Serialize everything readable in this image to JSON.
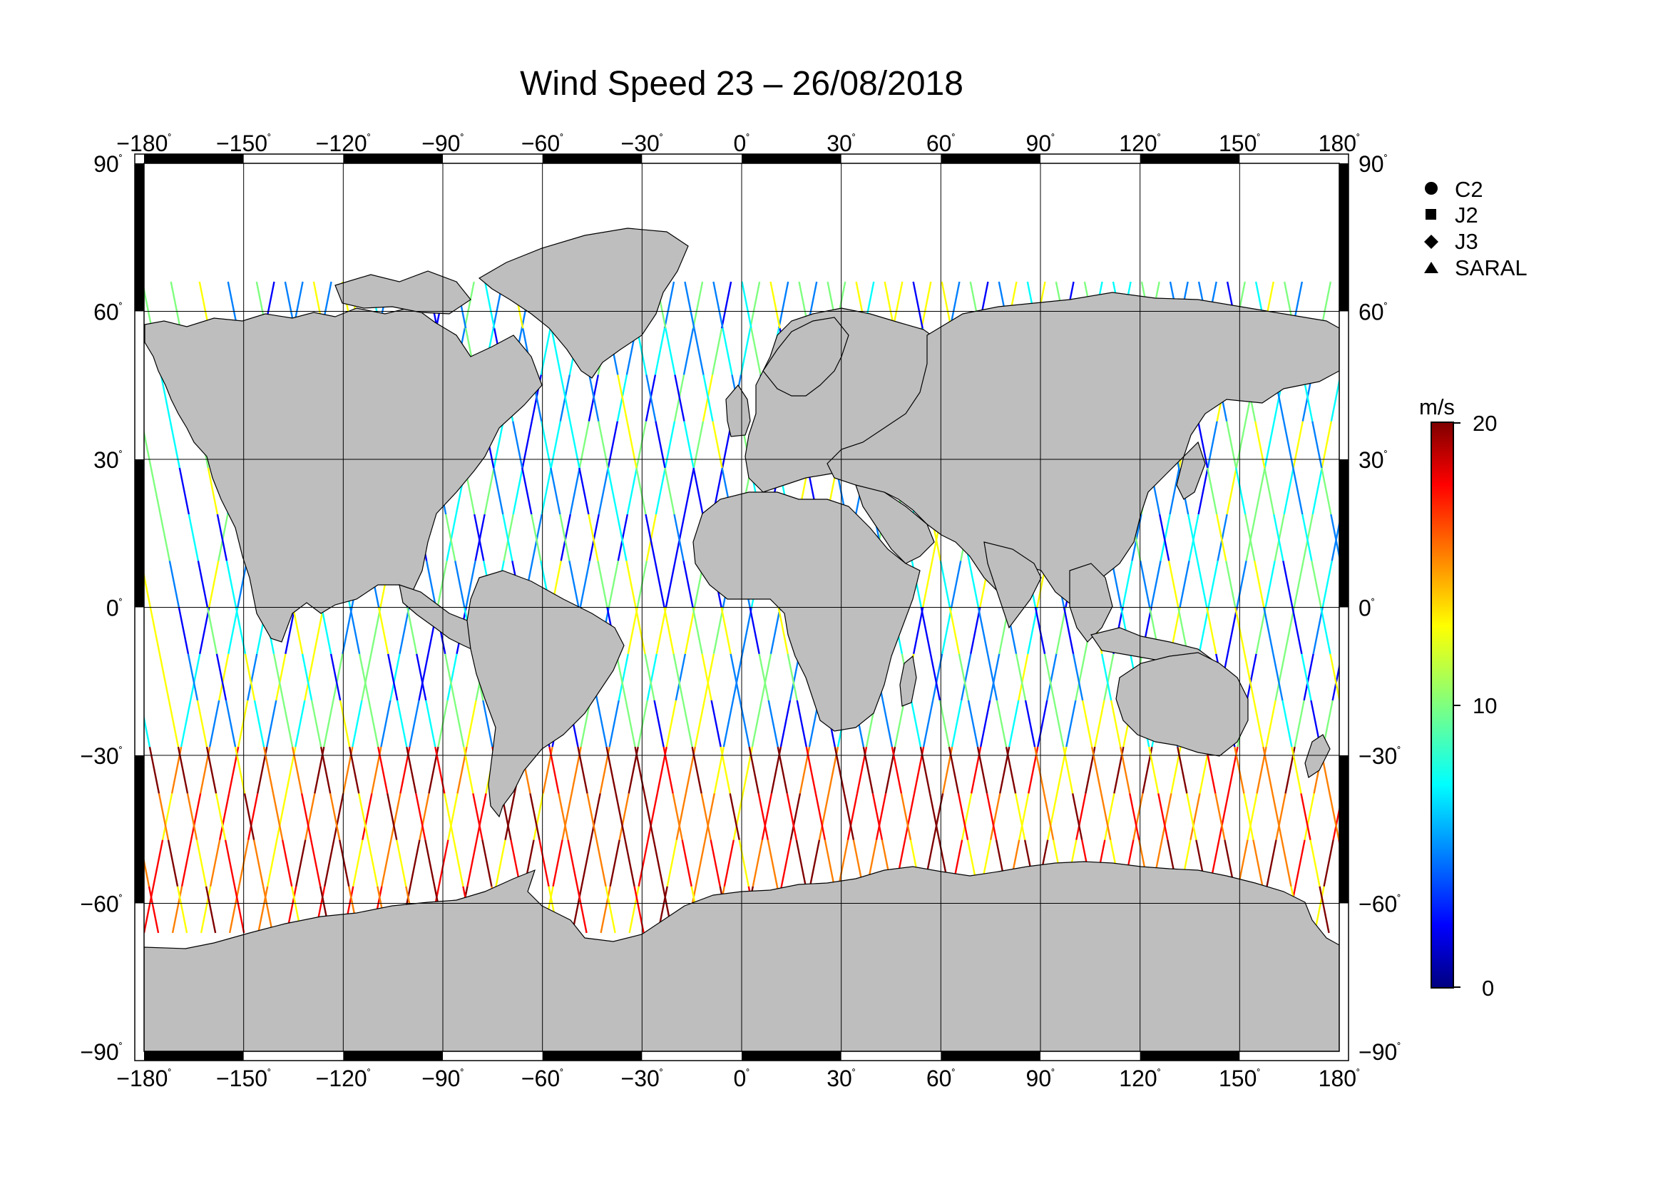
{
  "title": "Wind Speed 23 – 26/08/2018",
  "degree_symbol": "˚",
  "lon_ticks": [
    -180,
    -150,
    -120,
    -90,
    -60,
    -30,
    0,
    30,
    60,
    90,
    120,
    150,
    180
  ],
  "lat_ticks": [
    90,
    60,
    30,
    0,
    -30,
    -60,
    -90
  ],
  "lon_range": [
    -180,
    180
  ],
  "lat_range": [
    -90,
    90
  ],
  "legend": [
    {
      "label": "C2",
      "marker": "circle"
    },
    {
      "label": "J2",
      "marker": "square"
    },
    {
      "label": "J3",
      "marker": "diamond"
    },
    {
      "label": "SARAL",
      "marker": "triangle"
    }
  ],
  "colorbar": {
    "unit": "m/s",
    "min": 0,
    "max": 20,
    "tick_labels": [
      "20",
      "10",
      "0"
    ],
    "colormap": [
      "#00007f",
      "#0000ff",
      "#007fff",
      "#00ffff",
      "#7fff7f",
      "#ffff00",
      "#ff7f00",
      "#ff0000",
      "#7f0000"
    ]
  },
  "colors": {
    "land": "#bebebe",
    "ocean": "#ffffff",
    "grid": "#000000"
  }
}
